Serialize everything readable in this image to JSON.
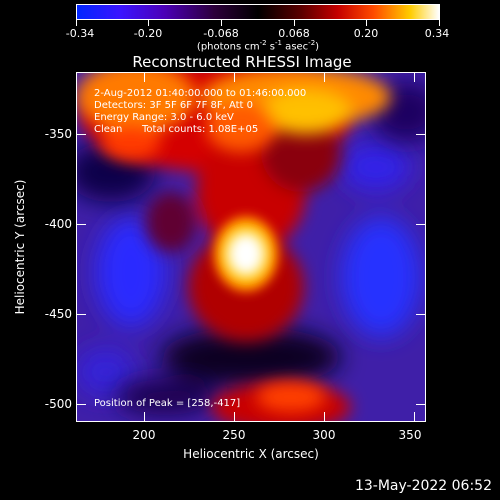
{
  "colorbar": {
    "tick_labels": [
      "-0.34",
      "-0.20",
      "-0.068",
      "0.068",
      "0.20",
      "0.34"
    ],
    "units_prefix": "(photons cm",
    "units_sup1": "-2",
    "units_mid1": " s",
    "units_sup2": "-1",
    "units_mid2": " asec",
    "units_sup3": "-2",
    "units_suffix": ")"
  },
  "title": "Reconstructed RHESSI Image",
  "annotations": {
    "time_range": "2-Aug-2012 01:40:00.000 to 01:46:00.000",
    "detectors": "Detectors: 3F 5F 6F 7F 8F, Att 0",
    "energy_range": "Energy Range: 3.0 - 6.0 keV",
    "method": "Clean",
    "total_counts": "Total counts: 1.08E+05",
    "peak_position": "Position of Peak = [258,-417]"
  },
  "axes": {
    "xlabel": "Heliocentric X (arcsec)",
    "ylabel": "Heliocentric Y (arcsec)",
    "x_ticks": [
      "200",
      "250",
      "300",
      "350"
    ],
    "y_ticks": [
      "-350",
      "-400",
      "-450",
      "-500"
    ],
    "xlim": [
      162,
      357
    ],
    "ylim": [
      -508,
      -313
    ]
  },
  "footer": {
    "timestamp": "13-May-2022 06:52"
  }
}
